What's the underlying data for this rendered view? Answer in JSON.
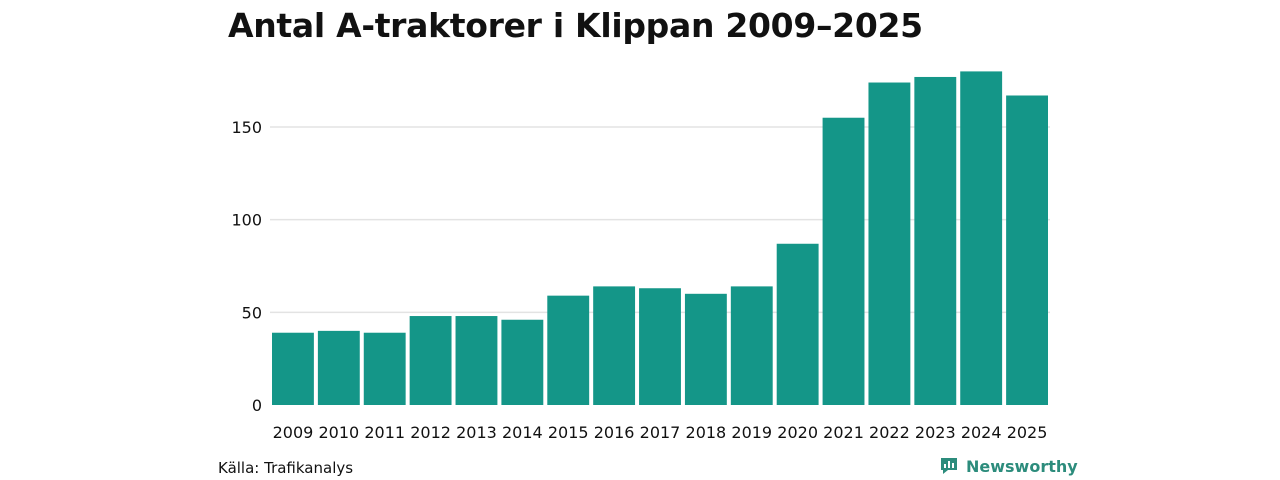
{
  "title": "Antal A-traktorer i Klippan 2009–2025",
  "source": "Källa: Trafikanalys",
  "brand": "Newsworthy",
  "colors": {
    "bar": "#149688",
    "grid": "#e3e3e3",
    "brand": "#2c8c7c"
  },
  "chart_data": {
    "type": "bar",
    "title": "Antal A-traktorer i Klippan 2009–2025",
    "xlabel": "",
    "ylabel": "",
    "categories": [
      "2009",
      "2010",
      "2011",
      "2012",
      "2013",
      "2014",
      "2015",
      "2016",
      "2017",
      "2018",
      "2019",
      "2020",
      "2021",
      "2022",
      "2023",
      "2024",
      "2025"
    ],
    "values": [
      39,
      40,
      39,
      48,
      48,
      46,
      59,
      64,
      63,
      60,
      64,
      87,
      155,
      174,
      177,
      180,
      167
    ],
    "yticks": [
      0,
      50,
      100,
      150
    ],
    "ylim": [
      0,
      180
    ],
    "grid": true
  }
}
